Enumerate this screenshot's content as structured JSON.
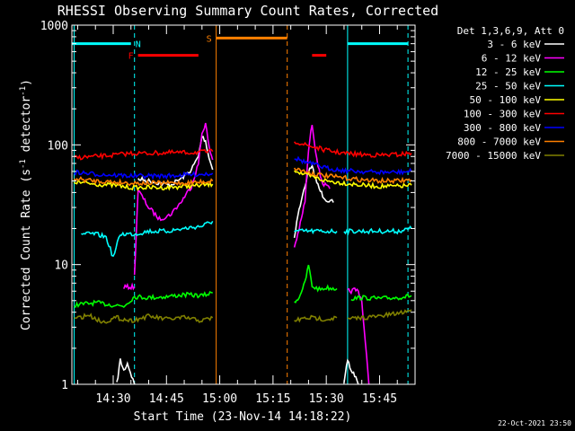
{
  "chart_data": {
    "type": "line",
    "title": "RHESSI Observing Summary Count Rates, Corrected",
    "xlabel": "Start Time (23-Nov-14 14:18:22)",
    "ylabel": "Corrected Count Rate (s",
    "ylabel_sup": "-1",
    "ylabel_tail": " detector",
    "ylabel_sup2": "-1",
    "ylabel_end": ")",
    "y_scale": "log",
    "ylim": [
      1,
      1000
    ],
    "y_ticks": [
      {
        "value": 1,
        "label": "1"
      },
      {
        "value": 10,
        "label": "10"
      },
      {
        "value": 100,
        "label": "100"
      },
      {
        "value": 1000,
        "label": "1000"
      }
    ],
    "xlim": [
      "14:18:22",
      "15:55:00"
    ],
    "x_ticks": [
      {
        "time": "14:30",
        "label": "14:30"
      },
      {
        "time": "14:45",
        "label": "14:45"
      },
      {
        "time": "15:00",
        "label": "15:00"
      },
      {
        "time": "15:15",
        "label": "15:15"
      },
      {
        "time": "15:30",
        "label": "15:30"
      },
      {
        "time": "15:45",
        "label": "15:45"
      }
    ],
    "legend_header": "Det 1,3,6,9, Att 0",
    "legend_position": "right",
    "timestamp": "22-Oct-2021 23:50",
    "series": [
      {
        "name": "3 - 6 keV",
        "color": "#ffffff",
        "segments": [
          {
            "x": [
              "14:31",
              "14:32",
              "14:33",
              "14:34",
              "14:36"
            ],
            "y": [
              1,
              1.6,
              1.3,
              1.5,
              1
            ]
          },
          {
            "x": [
              "14:37",
              "14:40",
              "14:43",
              "14:46",
              "14:49",
              "14:52",
              "14:54",
              "14:55",
              "14:56",
              "14:57",
              "14:58"
            ],
            "y": [
              52,
              50,
              48,
              46,
              52,
              62,
              80,
              118,
              108,
              78,
              62
            ]
          },
          {
            "x": [
              "15:21",
              "15:22",
              "15:23",
              "15:24",
              "15:25",
              "15:26",
              "15:27",
              "15:28",
              "15:29",
              "15:30",
              "15:32"
            ],
            "y": [
              17,
              26,
              34,
              46,
              60,
              65,
              52,
              43,
              38,
              35,
              33
            ]
          },
          {
            "x": [
              "15:35",
              "15:36",
              "15:37",
              "15:38",
              "15:39"
            ],
            "y": [
              1,
              1.6,
              1.3,
              1.2,
              1
            ]
          }
        ]
      },
      {
        "name": "6 - 12 keV",
        "color": "#ff00ff",
        "segments": [
          {
            "x": [
              "14:33",
              "14:34",
              "14:35",
              "14:36"
            ],
            "y": [
              6.5,
              6.5,
              6.5,
              6.5
            ]
          },
          {
            "x": [
              "14:36",
              "14:37",
              "14:40",
              "14:43",
              "14:46",
              "14:49",
              "14:52",
              "14:54",
              "14:55",
              "14:56",
              "14:57",
              "14:58"
            ],
            "y": [
              8,
              42,
              30,
              24,
              26,
              33,
              45,
              70,
              125,
              152,
              95,
              75
            ]
          },
          {
            "x": [
              "15:21",
              "15:22",
              "15:23",
              "15:24",
              "15:25",
              "15:26",
              "15:27",
              "15:28",
              "15:29",
              "15:30",
              "15:31"
            ],
            "y": [
              14,
              18,
              24,
              34,
              90,
              150,
              90,
              60,
              48,
              45,
              43
            ]
          },
          {
            "x": [
              "15:36",
              "15:37",
              "15:38",
              "15:39",
              "15:40",
              "15:41",
              "15:42"
            ],
            "y": [
              6,
              6,
              6.2,
              6,
              5,
              2.2,
              1
            ]
          }
        ]
      },
      {
        "name": "12 - 25 keV",
        "color": "#00ff00",
        "segments": [
          {
            "x": [
              "14:19",
              "14:25",
              "14:30",
              "14:33",
              "14:36",
              "14:40",
              "14:45",
              "14:50",
              "14:55",
              "14:58"
            ],
            "y": [
              4.6,
              4.8,
              4.6,
              4.5,
              5.4,
              5.3,
              5.4,
              5.6,
              5.5,
              5.8
            ]
          },
          {
            "x": [
              "15:21",
              "15:22",
              "15:23",
              "15:24",
              "15:25",
              "15:26",
              "15:28",
              "15:30",
              "15:33"
            ],
            "y": [
              5,
              5.1,
              6,
              7,
              10,
              6.6,
              6.2,
              6.4,
              6.3
            ]
          },
          {
            "x": [
              "15:37",
              "15:40",
              "15:45",
              "15:50",
              "15:54"
            ],
            "y": [
              5.2,
              5.3,
              5.2,
              5.3,
              5.5
            ]
          }
        ]
      },
      {
        "name": "25 - 50 keV",
        "color": "#00ffff",
        "segments": [
          {
            "x": [
              "14:21",
              "14:25",
              "14:28",
              "14:30",
              "14:32",
              "14:36",
              "14:40",
              "14:45",
              "14:50",
              "14:55",
              "14:58"
            ],
            "y": [
              18,
              18,
              17,
              11.5,
              18,
              18,
              19,
              19,
              20,
              21,
              23
            ]
          },
          {
            "x": [
              "15:21",
              "15:24",
              "15:27",
              "15:30",
              "15:33"
            ],
            "y": [
              19,
              19,
              19,
              19,
              19
            ]
          },
          {
            "x": [
              "15:35",
              "15:40",
              "15:45",
              "15:50",
              "15:54"
            ],
            "y": [
              19,
              19,
              19,
              19,
              20
            ]
          }
        ]
      },
      {
        "name": "50 - 100 keV",
        "color": "#ffff00",
        "segments": [
          {
            "x": [
              "14:19",
              "14:25",
              "14:30",
              "14:35",
              "14:40",
              "14:45",
              "14:50",
              "14:55",
              "14:58"
            ],
            "y": [
              49,
              47,
              46,
              44,
              44,
              44,
              45,
              46,
              47
            ]
          },
          {
            "x": [
              "15:21",
              "15:24",
              "15:27",
              "15:30",
              "15:35",
              "15:40",
              "15:45",
              "15:50",
              "15:54"
            ],
            "y": [
              62,
              56,
              53,
              50,
              48,
              46,
              45,
              45,
              46
            ]
          }
        ]
      },
      {
        "name": "100 - 300 keV",
        "color": "#ff0000",
        "segments": [
          {
            "x": [
              "14:19",
              "14:25",
              "14:30",
              "14:35",
              "14:40",
              "14:45",
              "14:50",
              "14:55",
              "14:58"
            ],
            "y": [
              78,
              80,
              82,
              85,
              85,
              86,
              86,
              87,
              88
            ]
          },
          {
            "x": [
              "15:21",
              "15:24",
              "15:27",
              "15:30",
              "15:35",
              "15:40",
              "15:45",
              "15:50",
              "15:54"
            ],
            "y": [
              108,
              100,
              95,
              90,
              85,
              83,
              82,
              83,
              85
            ]
          }
        ]
      },
      {
        "name": "300 - 800 keV",
        "color": "#0000ff",
        "segments": [
          {
            "x": [
              "14:19",
              "14:25",
              "14:30",
              "14:35",
              "14:40",
              "14:45",
              "14:50",
              "14:55",
              "14:58"
            ],
            "y": [
              59,
              57,
              56,
              55,
              55,
              55,
              56,
              57,
              58
            ]
          },
          {
            "x": [
              "15:21",
              "15:24",
              "15:27",
              "15:30",
              "15:35",
              "15:40",
              "15:45",
              "15:50",
              "15:54"
            ],
            "y": [
              78,
              72,
              68,
              64,
              61,
              60,
              59,
              59,
              60
            ]
          }
        ]
      },
      {
        "name": "800 - 7000 keV",
        "color": "#ff8000",
        "segments": [
          {
            "x": [
              "14:19",
              "14:25",
              "14:30",
              "14:35",
              "14:40",
              "14:45",
              "14:50",
              "14:55",
              "14:58"
            ],
            "y": [
              52,
              50,
              49,
              48,
              48,
              48,
              48,
              49,
              50
            ]
          },
          {
            "x": [
              "15:21",
              "15:24",
              "15:27",
              "15:30",
              "15:35",
              "15:40",
              "15:45",
              "15:50",
              "15:54"
            ],
            "y": [
              64,
              60,
              57,
              55,
              53,
              51,
              50,
              50,
              51
            ]
          }
        ]
      },
      {
        "name": "7000 - 15000 keV",
        "color": "#808000",
        "segments": [
          {
            "x": [
              "14:19",
              "14:23",
              "14:27",
              "14:31",
              "14:35",
              "14:40",
              "14:45",
              "14:50",
              "14:55",
              "14:58"
            ],
            "y": [
              3.5,
              3.8,
              3.3,
              3.6,
              3.4,
              3.7,
              3.5,
              3.6,
              3.4,
              3.6
            ]
          },
          {
            "x": [
              "15:21",
              "15:25",
              "15:30",
              "15:33"
            ],
            "y": [
              3.4,
              3.6,
              3.5,
              3.6
            ]
          },
          {
            "x": [
              "15:36",
              "15:40",
              "15:45",
              "15:50",
              "15:54"
            ],
            "y": [
              3.5,
              3.6,
              3.7,
              3.9,
              4.2
            ]
          }
        ]
      }
    ],
    "flags": [
      {
        "label": "N",
        "color": "#00ffff",
        "level": 700,
        "segments": [
          [
            "14:18:22",
            "14:35"
          ],
          [
            "15:36",
            "15:53"
          ]
        ]
      },
      {
        "label": "F",
        "color": "#ff0000",
        "level": 560,
        "segments": [
          [
            "14:37",
            "14:54"
          ],
          [
            "15:26",
            "15:30"
          ]
        ]
      },
      {
        "label": "S",
        "color": "#ff8000",
        "level": 780,
        "segments": [
          [
            "14:59",
            "15:19"
          ]
        ]
      }
    ],
    "event_lines": [
      {
        "time": "14:19",
        "color": "#00ffff",
        "style": "solid"
      },
      {
        "time": "14:36",
        "color": "#00ffff",
        "style": "dashed"
      },
      {
        "time": "14:59",
        "color": "#ff8000",
        "style": "solid"
      },
      {
        "time": "15:19",
        "color": "#ff8000",
        "style": "dashed"
      },
      {
        "time": "15:36",
        "color": "#00ffff",
        "style": "solid"
      },
      {
        "time": "15:53",
        "color": "#00ffff",
        "style": "dashed"
      }
    ]
  }
}
